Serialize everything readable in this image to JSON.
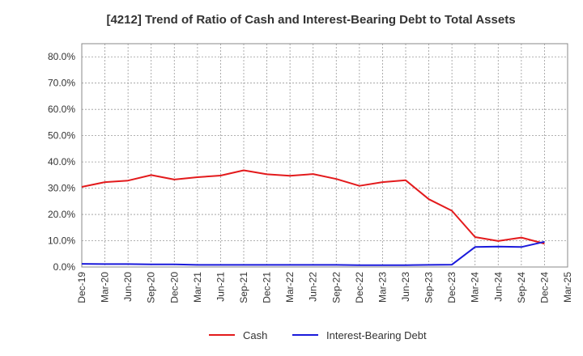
{
  "chart_data": {
    "type": "line",
    "title": "[4212]  Trend of Ratio of Cash and Interest-Bearing Debt to Total Assets",
    "xlabel": "",
    "ylabel": "",
    "ylim": [
      0,
      85
    ],
    "yticks": [
      "0.0%",
      "10.0%",
      "20.0%",
      "30.0%",
      "40.0%",
      "50.0%",
      "60.0%",
      "70.0%",
      "80.0%"
    ],
    "ytick_values": [
      0,
      10,
      20,
      30,
      40,
      50,
      60,
      70,
      80
    ],
    "xtick_labels": [
      "Dec-19",
      "Mar-20",
      "Jun-20",
      "Sep-20",
      "Dec-20",
      "Mar-21",
      "Jun-21",
      "Sep-21",
      "Dec-21",
      "Mar-22",
      "Jun-22",
      "Sep-22",
      "Dec-22",
      "Mar-23",
      "Jun-23",
      "Sep-23",
      "Dec-23",
      "Mar-24",
      "Jun-24",
      "Sep-24",
      "Dec-24",
      "Mar-25"
    ],
    "x": [
      "Dec-19",
      "Mar-20",
      "Jun-20",
      "Sep-20",
      "Dec-20",
      "Mar-21",
      "Jun-21",
      "Sep-21",
      "Dec-21",
      "Mar-22",
      "Jun-22",
      "Sep-22",
      "Dec-22",
      "Mar-23",
      "Jun-23",
      "Sep-23",
      "Dec-23",
      "Mar-24",
      "Jun-24",
      "Sep-24",
      "Dec-24"
    ],
    "grid": true,
    "legend_position": "bottom-center",
    "series": [
      {
        "name": "Cash",
        "color": "#e31a1c",
        "values": [
          30.5,
          32.3,
          32.9,
          35.0,
          33.3,
          34.2,
          34.8,
          36.8,
          35.3,
          34.7,
          35.4,
          33.5,
          30.9,
          32.3,
          33.0,
          25.8,
          21.4,
          11.4,
          9.9,
          11.2,
          8.9
        ]
      },
      {
        "name": "Interest-Bearing Debt",
        "color": "#1a1adb",
        "values": [
          1.2,
          1.1,
          1.1,
          1.0,
          1.0,
          0.8,
          0.8,
          0.8,
          0.8,
          0.8,
          0.8,
          0.8,
          0.7,
          0.7,
          0.7,
          0.8,
          0.9,
          7.6,
          7.8,
          7.6,
          9.6
        ]
      }
    ]
  }
}
